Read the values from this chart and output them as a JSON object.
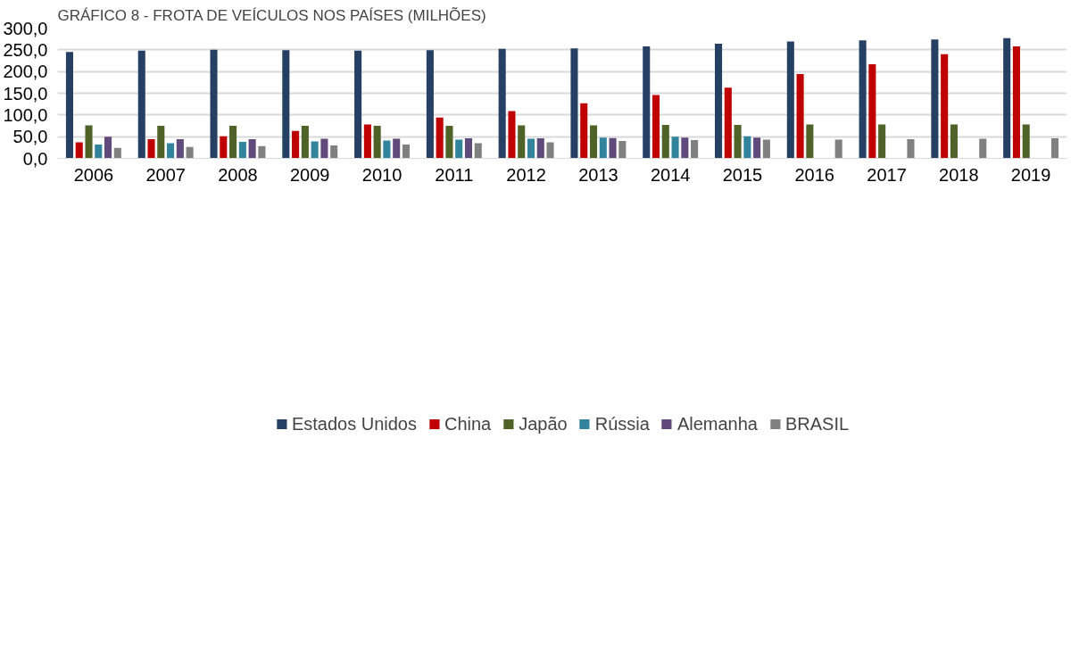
{
  "chart_data": {
    "type": "bar",
    "title": "GRÁFICO 8 - FROTA DE VEÍCULOS NOS PAÍSES (MILHÕES)",
    "categories": [
      "2006",
      "2007",
      "2008",
      "2009",
      "2010",
      "2011",
      "2012",
      "2013",
      "2014",
      "2015",
      "2016",
      "2017",
      "2018",
      "2019"
    ],
    "series": [
      {
        "name": "Estados Unidos",
        "color": "#264064",
        "values": [
          245,
          248,
          250,
          249,
          248,
          249,
          252,
          253,
          258,
          264,
          269,
          272,
          274,
          277
        ]
      },
      {
        "name": "China",
        "color": "#c00000",
        "values": [
          37,
          44,
          51,
          63,
          78,
          94,
          109,
          127,
          146,
          163,
          194,
          217,
          240,
          258
        ]
      },
      {
        "name": "Japão",
        "color": "#4f6228",
        "values": [
          76,
          75,
          75,
          75,
          75,
          75,
          76,
          76,
          77,
          77,
          78,
          78,
          78,
          78
        ]
      },
      {
        "name": "Rússia",
        "color": "#31849b",
        "values": [
          32,
          35,
          38,
          39,
          41,
          43,
          45,
          48,
          50,
          51,
          null,
          null,
          null,
          null
        ]
      },
      {
        "name": "Alemanha",
        "color": "#604a7b",
        "values": [
          50,
          44,
          44,
          45,
          45,
          46,
          46,
          47,
          48,
          48,
          null,
          null,
          null,
          null
        ]
      },
      {
        "name": "BRASIL",
        "color": "#808080",
        "values": [
          24,
          26,
          28,
          30,
          32,
          35,
          37,
          40,
          42,
          43,
          43,
          44,
          45,
          46
        ]
      }
    ],
    "ylim": [
      0,
      300
    ],
    "yticks": [
      {
        "value": 0,
        "label": "0,0"
      },
      {
        "value": 50,
        "label": "50,0"
      },
      {
        "value": 100,
        "label": "100,0"
      },
      {
        "value": 150,
        "label": "150,0"
      },
      {
        "value": 200,
        "label": "200,0"
      },
      {
        "value": 250,
        "label": "250,0"
      },
      {
        "value": 300,
        "label": "300,0"
      }
    ],
    "grid": "y",
    "legend": "bottom"
  }
}
